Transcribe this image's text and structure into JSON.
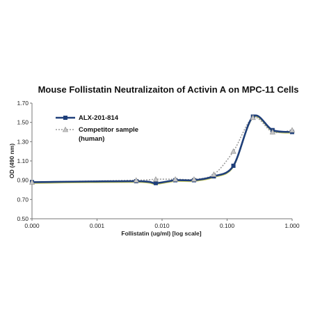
{
  "chart_data": {
    "type": "line",
    "title": "Mouse Follistatin Neutralizaiton of Activin A on MPC-11 Cells",
    "xlabel": "Follistatin (ug/ml) [log scale]",
    "ylabel": "OD (490 nm)",
    "x_scale": "log",
    "xlim": [
      0.0001,
      1.0
    ],
    "ylim": [
      0.5,
      1.7
    ],
    "x_tick_values": [
      0.0001,
      0.001,
      0.01,
      0.1,
      1.0
    ],
    "x_tick_labels": [
      "0.000",
      "0.001",
      "0.010",
      "0.100",
      "1.000"
    ],
    "y_tick_values": [
      0.5,
      0.7,
      0.9,
      1.1,
      1.3,
      1.5,
      1.7
    ],
    "y_tick_labels": [
      "0.50",
      "0.70",
      "0.90",
      "1.10",
      "1.30",
      "1.50",
      "1.70"
    ],
    "grid": false,
    "legend_position": "top-left",
    "series": [
      {
        "name": "ALX-201-814",
        "style": "solid",
        "marker": "square",
        "color": "#1f3f7a",
        "x": [
          0.0001,
          0.004,
          0.008,
          0.016,
          0.031,
          0.0625,
          0.125,
          0.25,
          0.5,
          1.0
        ],
        "y": [
          0.88,
          0.89,
          0.87,
          0.9,
          0.9,
          0.94,
          1.05,
          1.56,
          1.42,
          1.4
        ]
      },
      {
        "name": "Competitor sample (human)",
        "name_lines": [
          "Competitor sample",
          "(human)"
        ],
        "style": "dotted",
        "marker": "triangle",
        "color": "#9a9a9a",
        "x": [
          0.0001,
          0.004,
          0.008,
          0.016,
          0.031,
          0.0625,
          0.125,
          0.25,
          0.5,
          1.0
        ],
        "y": [
          0.88,
          0.9,
          0.91,
          0.91,
          0.91,
          0.96,
          1.2,
          1.55,
          1.4,
          1.42
        ]
      }
    ],
    "extra_line_color": "#c8c85a"
  }
}
